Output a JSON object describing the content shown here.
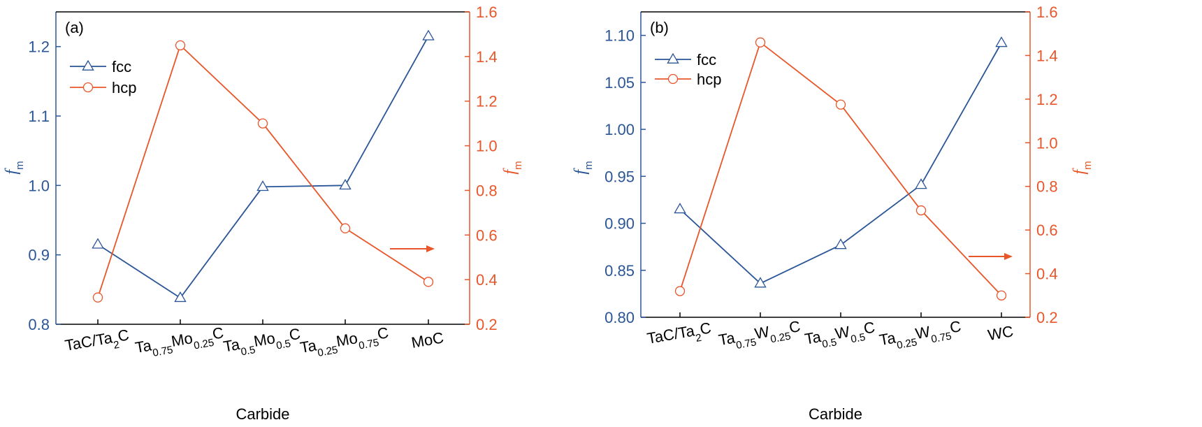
{
  "colors": {
    "fcc": "#2a5597",
    "hcp": "#e8562a",
    "axis": "#000000"
  },
  "chart_data": [
    {
      "type": "line",
      "panel_label": "(a)",
      "xlabel": "Carbide",
      "categories": [
        {
          "parts": [
            [
              "TaC/Ta",
              false
            ],
            [
              "2",
              true
            ],
            [
              "C",
              false
            ]
          ]
        },
        {
          "parts": [
            [
              "Ta",
              false
            ],
            [
              "0.75",
              true
            ],
            [
              "Mo",
              false
            ],
            [
              "0.25",
              true
            ],
            [
              "C",
              false
            ]
          ]
        },
        {
          "parts": [
            [
              "Ta",
              false
            ],
            [
              "0.5",
              true
            ],
            [
              "Mo",
              false
            ],
            [
              "0.5",
              true
            ],
            [
              "C",
              false
            ]
          ]
        },
        {
          "parts": [
            [
              "Ta",
              false
            ],
            [
              "0.25",
              true
            ],
            [
              "Mo",
              false
            ],
            [
              "0.75",
              true
            ],
            [
              "C",
              false
            ]
          ]
        },
        {
          "parts": [
            [
              "MoC",
              false
            ]
          ]
        }
      ],
      "y_left": {
        "label": "f",
        "label_sub": "m",
        "range": [
          0.8,
          1.25
        ],
        "ticks": [
          "0.8",
          "0.9",
          "1.0",
          "1.1",
          "1.2"
        ]
      },
      "y_right": {
        "label": "f",
        "label_sub": "m",
        "range": [
          0.2,
          1.6
        ],
        "ticks": [
          "0.2",
          "0.4",
          "0.6",
          "0.8",
          "1.0",
          "1.2",
          "1.4",
          "1.6"
        ]
      },
      "series": [
        {
          "name": "fcc",
          "axis": "left",
          "marker": "triangle",
          "values": [
            0.915,
            0.838,
            0.998,
            1.0,
            1.215
          ]
        },
        {
          "name": "hcp",
          "axis": "right",
          "marker": "circle",
          "values": [
            0.32,
            1.45,
            1.1,
            0.63,
            0.39
          ]
        }
      ],
      "legend": "top-left",
      "annotation": "arrow pointing to right axis"
    },
    {
      "type": "line",
      "panel_label": "(b)",
      "xlabel": "Carbide",
      "categories": [
        {
          "parts": [
            [
              "TaC/Ta",
              false
            ],
            [
              "2",
              true
            ],
            [
              "C",
              false
            ]
          ]
        },
        {
          "parts": [
            [
              "Ta",
              false
            ],
            [
              "0.75",
              true
            ],
            [
              "W",
              false
            ],
            [
              "0.25",
              true
            ],
            [
              "C",
              false
            ]
          ]
        },
        {
          "parts": [
            [
              "Ta",
              false
            ],
            [
              "0.5",
              true
            ],
            [
              "W",
              false
            ],
            [
              "0.5",
              true
            ],
            [
              "C",
              false
            ]
          ]
        },
        {
          "parts": [
            [
              "Ta",
              false
            ],
            [
              "0.25",
              true
            ],
            [
              "W",
              false
            ],
            [
              "0.75",
              true
            ],
            [
              "C",
              false
            ]
          ]
        },
        {
          "parts": [
            [
              "WC",
              false
            ]
          ]
        }
      ],
      "y_left": {
        "label": "f",
        "label_sub": "m",
        "range": [
          0.8,
          1.125
        ],
        "ticks": [
          "0.80",
          "0.85",
          "0.90",
          "0.95",
          "1.00",
          "1.05",
          "1.10"
        ]
      },
      "y_right": {
        "label": "f",
        "label_sub": "m",
        "range": [
          0.2,
          1.6
        ],
        "ticks": [
          "0.2",
          "0.4",
          "0.6",
          "0.8",
          "1.0",
          "1.2",
          "1.4",
          "1.6"
        ]
      },
      "series": [
        {
          "name": "fcc",
          "axis": "left",
          "marker": "triangle",
          "values": [
            0.915,
            0.836,
            0.877,
            0.941,
            1.092
          ]
        },
        {
          "name": "hcp",
          "axis": "right",
          "marker": "circle",
          "values": [
            0.32,
            1.46,
            1.175,
            0.69,
            0.3
          ]
        }
      ],
      "legend": "top-left",
      "annotation": "arrow pointing to right axis"
    }
  ]
}
